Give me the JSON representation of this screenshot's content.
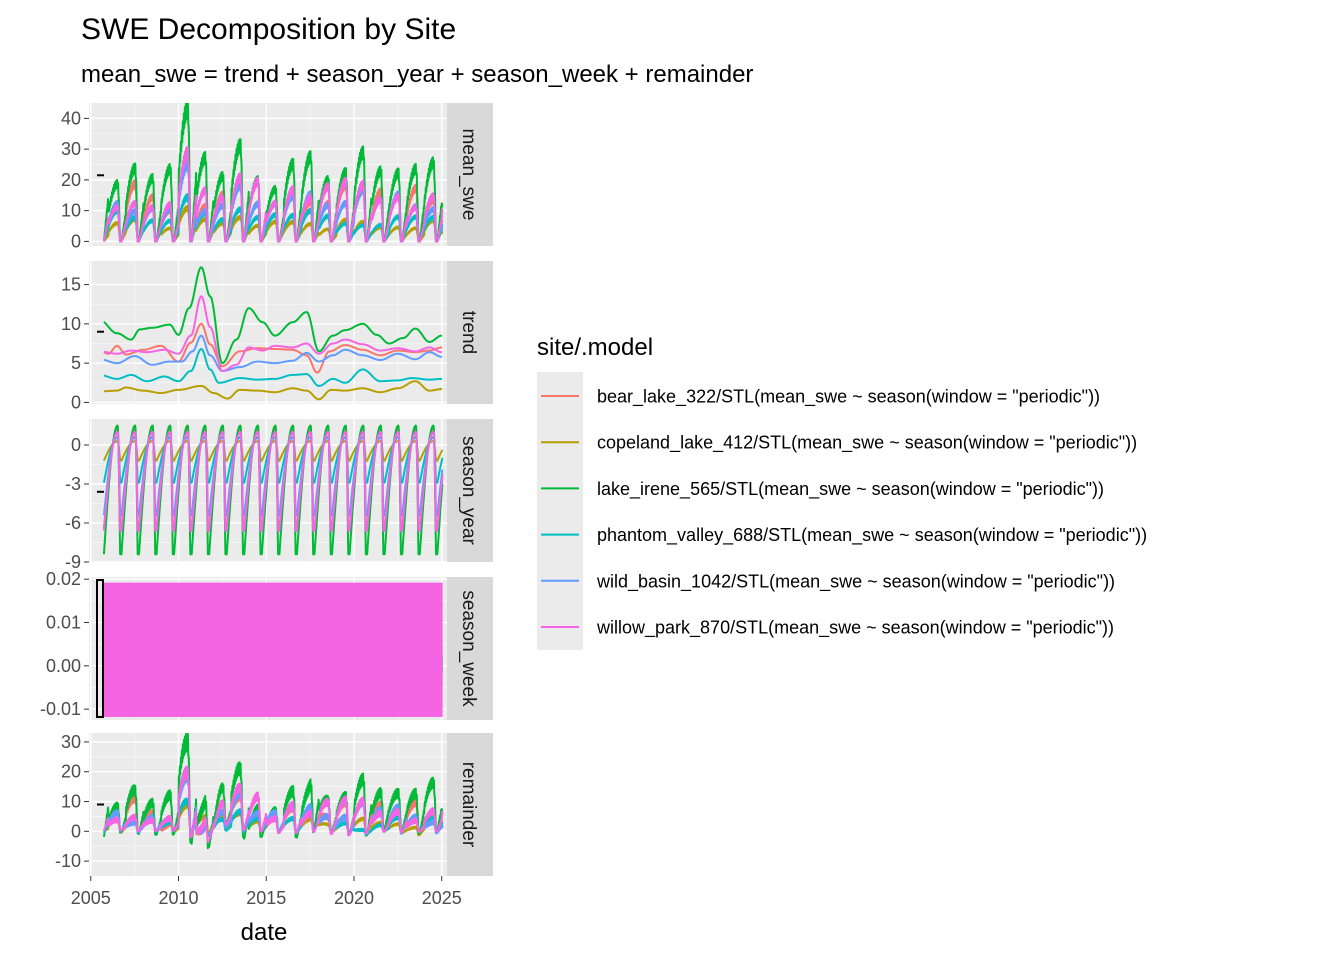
{
  "chart_data": {
    "type": "line",
    "title": "SWE Decomposition by Site",
    "subtitle": "mean_swe = trend + season_year + season_week + remainder",
    "xlabel": "date",
    "x_ticks": [
      "2005",
      "2010",
      "2015",
      "2020",
      "2025"
    ],
    "x_range": [
      2004.9,
      2025.3
    ],
    "facets": [
      {
        "name": "mean_swe",
        "ylim": [
          -1.5,
          45
        ],
        "ticks": [
          0,
          10,
          20,
          30,
          40
        ],
        "tick_labels": [
          "0",
          "10",
          "20",
          "30",
          "40"
        ]
      },
      {
        "name": "trend",
        "ylim": [
          -0.2,
          18
        ],
        "ticks": [
          0,
          5,
          10,
          15
        ],
        "tick_labels": [
          "0",
          "5",
          "10",
          "15"
        ]
      },
      {
        "name": "season_year",
        "ylim": [
          -9,
          2
        ],
        "ticks": [
          -9,
          -6,
          -3,
          0
        ],
        "tick_labels": [
          "-9",
          "-6",
          "-3",
          "0"
        ]
      },
      {
        "name": "season_week",
        "ylim": [
          -0.0125,
          0.0205
        ],
        "ticks": [
          -0.01,
          0,
          0.01,
          0.02
        ],
        "tick_labels": [
          "-0.01",
          "0.00",
          "0.01",
          "0.02"
        ]
      },
      {
        "name": "remainder",
        "ylim": [
          -15,
          33
        ],
        "ticks": [
          -10,
          0,
          10,
          20,
          30
        ],
        "tick_labels": [
          "-10",
          "0",
          "10",
          "20",
          "30"
        ]
      }
    ],
    "legend_title": "site/.model",
    "legend_position": "right",
    "grid": true,
    "series": [
      {
        "name": "bear_lake_322/STL(mean_swe ~ season(window = \"periodic\"))",
        "color": "#F8766D",
        "peak": 15,
        "trend": [
          [
            2005.5,
            6.6
          ],
          [
            2006,
            6.2
          ],
          [
            2006.5,
            7.2
          ],
          [
            2007,
            6.1
          ],
          [
            2008,
            6.7
          ],
          [
            2009,
            7.2
          ],
          [
            2010,
            5.2
          ],
          [
            2010.7,
            7.6
          ],
          [
            2011.3,
            10
          ],
          [
            2011.8,
            7.4
          ],
          [
            2012.5,
            4.6
          ],
          [
            2013.5,
            6.5
          ],
          [
            2014.5,
            6.9
          ],
          [
            2015.5,
            6.8
          ],
          [
            2016.5,
            6.7
          ],
          [
            2017.3,
            6.0
          ],
          [
            2017.9,
            3.8
          ],
          [
            2018.6,
            6.5
          ],
          [
            2019.5,
            7.3
          ],
          [
            2020.5,
            6.7
          ],
          [
            2021.5,
            6.0
          ],
          [
            2022.5,
            6.6
          ],
          [
            2023.5,
            6.4
          ],
          [
            2024.3,
            6.6
          ],
          [
            2025,
            7.0
          ]
        ],
        "season_year": {
          "base": -6.4,
          "peak": 1.2
        },
        "season_week_amp": 0.002
      },
      {
        "name": "copeland_lake_412/STL(mean_swe ~ season(window = \"periodic\"))",
        "color": "#B79F00",
        "peak": 6,
        "trend": [
          [
            2005.5,
            1.4
          ],
          [
            2006.5,
            1.5
          ],
          [
            2007,
            1.9
          ],
          [
            2008,
            1.5
          ],
          [
            2009,
            1.2
          ],
          [
            2010,
            1.6
          ],
          [
            2011.3,
            2.1
          ],
          [
            2012,
            1.2
          ],
          [
            2012.8,
            0.5
          ],
          [
            2013.5,
            1.6
          ],
          [
            2014.5,
            1.5
          ],
          [
            2015.5,
            1.3
          ],
          [
            2016.5,
            1.8
          ],
          [
            2017.3,
            1.5
          ],
          [
            2018,
            0.4
          ],
          [
            2018.7,
            1.6
          ],
          [
            2019.5,
            1.5
          ],
          [
            2020.5,
            1.8
          ],
          [
            2021.5,
            1.3
          ],
          [
            2022.5,
            1.8
          ],
          [
            2023.5,
            2.7
          ],
          [
            2024.3,
            1.5
          ],
          [
            2025,
            1.7
          ]
        ],
        "season_year": {
          "base": -1.2,
          "peak": 0.3
        },
        "season_week_amp": 0.002
      },
      {
        "name": "lake_irene_565/STL(mean_swe ~ season(window = \"periodic\"))",
        "color": "#00BA38",
        "peak": 24,
        "trend": [
          [
            2005.5,
            10.5
          ],
          [
            2006.5,
            8.8
          ],
          [
            2007.3,
            8.0
          ],
          [
            2007.8,
            9.3
          ],
          [
            2008.5,
            9.5
          ],
          [
            2009.5,
            9.9
          ],
          [
            2010,
            8.6
          ],
          [
            2010.6,
            12
          ],
          [
            2011.3,
            17.2
          ],
          [
            2011.8,
            13.5
          ],
          [
            2012.5,
            5.0
          ],
          [
            2013.3,
            8.0
          ],
          [
            2014,
            12
          ],
          [
            2014.8,
            10.2
          ],
          [
            2015.5,
            8.5
          ],
          [
            2016.5,
            10.2
          ],
          [
            2017.3,
            11.5
          ],
          [
            2018,
            6.5
          ],
          [
            2018.8,
            8.5
          ],
          [
            2019.5,
            9.2
          ],
          [
            2020.5,
            10
          ],
          [
            2021.3,
            8.6
          ],
          [
            2022,
            7.5
          ],
          [
            2022.8,
            8.2
          ],
          [
            2023.5,
            9.4
          ],
          [
            2024.3,
            7.7
          ],
          [
            2025,
            8.5
          ]
        ],
        "season_year": {
          "base": -8.4,
          "peak": 1.5
        },
        "season_week_amp": 0.002
      },
      {
        "name": "phantom_valley_688/STL(mean_swe ~ season(window = \"periodic\"))",
        "color": "#00BFC4",
        "peak": 8,
        "trend": [
          [
            2005.5,
            3.5
          ],
          [
            2006.5,
            3.0
          ],
          [
            2007.3,
            3.5
          ],
          [
            2008.2,
            2.7
          ],
          [
            2009.2,
            3.3
          ],
          [
            2010,
            2.7
          ],
          [
            2010.7,
            4.0
          ],
          [
            2011.3,
            6.8
          ],
          [
            2011.8,
            4.2
          ],
          [
            2012.3,
            2.5
          ],
          [
            2013.5,
            3.1
          ],
          [
            2014.5,
            2.9
          ],
          [
            2015.5,
            3.0
          ],
          [
            2016.5,
            3.5
          ],
          [
            2017.3,
            3.6
          ],
          [
            2018,
            2.1
          ],
          [
            2018.8,
            3.0
          ],
          [
            2019.5,
            2.5
          ],
          [
            2020.5,
            4.2
          ],
          [
            2021.5,
            2.7
          ],
          [
            2022.5,
            2.8
          ],
          [
            2023.3,
            3.1
          ],
          [
            2024.3,
            2.9
          ],
          [
            2025,
            3.0
          ]
        ],
        "season_year": {
          "base": -2.9,
          "peak": 0.6
        },
        "season_week_amp": 0.002
      },
      {
        "name": "wild_basin_1042/STL(mean_swe ~ season(window = \"periodic\"))",
        "color": "#619CFF",
        "peak": 14,
        "trend": [
          [
            2005.5,
            5.5
          ],
          [
            2006.5,
            5.0
          ],
          [
            2007.5,
            5.9
          ],
          [
            2008.5,
            4.8
          ],
          [
            2009.5,
            5.2
          ],
          [
            2010.2,
            5.2
          ],
          [
            2010.8,
            6.5
          ],
          [
            2011.3,
            8.5
          ],
          [
            2011.8,
            6.0
          ],
          [
            2012.5,
            4.0
          ],
          [
            2013.5,
            4.5
          ],
          [
            2014.5,
            5.2
          ],
          [
            2015.5,
            5.0
          ],
          [
            2016.5,
            5.3
          ],
          [
            2017.3,
            6.3
          ],
          [
            2018,
            5.2
          ],
          [
            2018.8,
            6.0
          ],
          [
            2019.5,
            6.7
          ],
          [
            2020.5,
            6.0
          ],
          [
            2021.5,
            5.4
          ],
          [
            2022.5,
            6.2
          ],
          [
            2023.5,
            5.5
          ],
          [
            2024.3,
            6.4
          ],
          [
            2025,
            5.8
          ]
        ],
        "season_year": {
          "base": -5.4,
          "peak": 1.0
        },
        "season_week_amp": 0.002
      },
      {
        "name": "willow_park_870/STL(mean_swe ~ season(window = \"periodic\"))",
        "color": "#F564E3",
        "peak": 16,
        "trend": [
          [
            2005.5,
            6.5
          ],
          [
            2006.5,
            6.2
          ],
          [
            2007.3,
            6.6
          ],
          [
            2008.2,
            6.4
          ],
          [
            2009.2,
            6.7
          ],
          [
            2010,
            6.2
          ],
          [
            2010.7,
            8.5
          ],
          [
            2011.3,
            13.5
          ],
          [
            2011.8,
            9.6
          ],
          [
            2012.5,
            4.0
          ],
          [
            2013.3,
            4.8
          ],
          [
            2014,
            7.0
          ],
          [
            2014.8,
            6.6
          ],
          [
            2015.5,
            7.2
          ],
          [
            2016.5,
            7.0
          ],
          [
            2017.3,
            7.5
          ],
          [
            2018,
            6.2
          ],
          [
            2018.8,
            7.5
          ],
          [
            2019.5,
            8.0
          ],
          [
            2020.5,
            7.4
          ],
          [
            2021.5,
            6.6
          ],
          [
            2022.5,
            6.9
          ],
          [
            2023.5,
            6.5
          ],
          [
            2024.3,
            7.0
          ],
          [
            2025,
            6.4
          ]
        ],
        "season_year": {
          "base": -6.6,
          "peak": 1.0
        },
        "season_week_amp": 0.016
      }
    ]
  }
}
